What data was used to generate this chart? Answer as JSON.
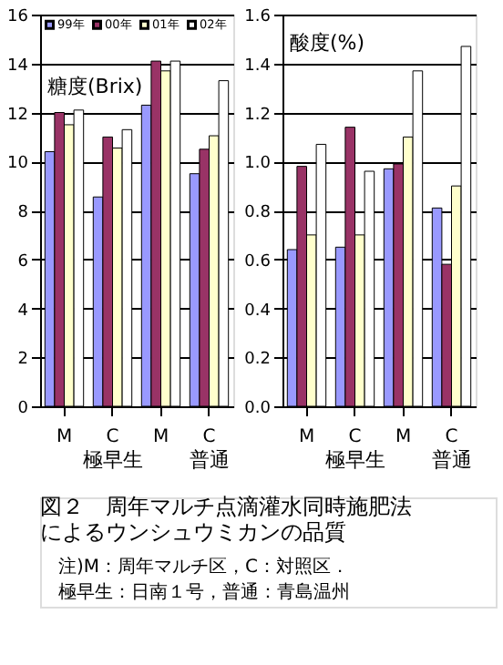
{
  "chart_data": [
    {
      "type": "bar",
      "title": "糖度(Brix)",
      "categories": [
        "M",
        "C",
        "M",
        "C"
      ],
      "series": [
        {
          "name": "99年",
          "color": "#9999ff",
          "values": [
            10.4,
            8.55,
            12.3,
            9.5
          ]
        },
        {
          "name": "00年",
          "color": "#993366",
          "values": [
            12.0,
            11.0,
            14.1,
            10.5
          ]
        },
        {
          "name": "01年",
          "color": "#ffffcc",
          "values": [
            11.5,
            10.55,
            13.7,
            11.05
          ]
        },
        {
          "name": "02年",
          "color": "#ffffff",
          "values": [
            12.1,
            11.3,
            14.1,
            13.3
          ]
        }
      ],
      "ylim": [
        0,
        16
      ],
      "yticks": [
        0,
        2,
        4,
        6,
        8,
        10,
        12,
        14,
        16
      ],
      "grid": "y",
      "legend": "top left",
      "annotations": [
        "極早生",
        "普通",
        "図２　周年マルチ点滴灌水同時施肥法によるウンシュウミカンの品質",
        "注)M：周年マルチ区，C：対照区．極早生：日南１号，普通：青島温州"
      ]
    },
    {
      "type": "bar",
      "title": "酸度(%)",
      "categories": [
        "M",
        "C",
        "M",
        "C"
      ],
      "annotations": [
        "極早生",
        "普通"
      ],
      "series": [
        {
          "color": "#9999ff",
          "values": [
            0.64,
            0.65,
            0.97,
            0.81
          ]
        },
        {
          "color": "#993366",
          "values": [
            0.98,
            1.14,
            0.99,
            0.58
          ]
        },
        {
          "color": "#ffffcc",
          "values": [
            0.7,
            0.7,
            1.1,
            0.9
          ]
        },
        {
          "color": "#ffffff",
          "values": [
            1.07,
            0.96,
            1.37,
            1.47
          ]
        }
      ],
      "ylim": [
        0,
        1.6
      ],
      "yticks": [
        {
          "value": 0,
          "label": "0.0"
        },
        {
          "value": 0.2,
          "label": "0.2"
        },
        {
          "value": 0.4,
          "label": "0.4"
        },
        {
          "value": 0.6,
          "label": "0.6"
        },
        {
          "value": 0.8,
          "label": "0.8"
        },
        {
          "value": 1.0,
          "label": "1.0"
        },
        {
          "value": 1.2,
          "label": "1.2"
        },
        {
          "value": 1.4,
          "label": "1.4"
        },
        {
          "value": 1.6,
          "label": "1.6"
        }
      ],
      "grid": "y",
      "legend": false
    }
  ]
}
